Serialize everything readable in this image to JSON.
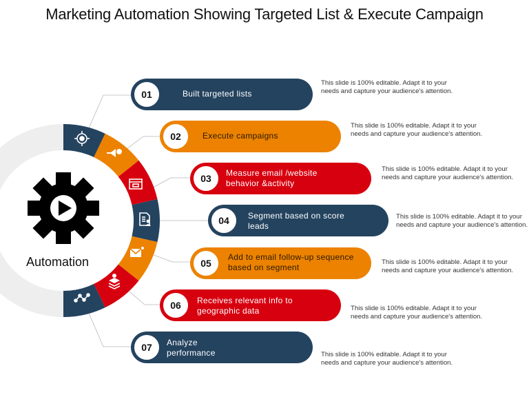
{
  "title": "Marketing Automation Showing Targeted List & Execute Campaign",
  "center": {
    "label": "Automation",
    "icon": "gear-play-icon"
  },
  "colors": {
    "navy": "#24435f",
    "orange": "#ec8200",
    "red": "#d7000f",
    "ring_bg": "#eeeeee",
    "connector": "#c8c8c8"
  },
  "steps": [
    {
      "num": "01",
      "label": "Built targeted lists",
      "color": "navy",
      "icon": "target-icon",
      "text_color": "#ffffff",
      "desc": "This slide is 100% editable. Adapt it to your needs and capture your audience's attention."
    },
    {
      "num": "02",
      "label": "Execute campaigns",
      "color": "orange",
      "icon": "megaphone-icon",
      "text_color": "#2a1a00",
      "desc": "This slide is 100% editable. Adapt it to your needs and capture your audience's attention."
    },
    {
      "num": "03",
      "label": "Measure email /website behavior &activity",
      "color": "red",
      "icon": "browser-window-icon",
      "text_color": "#ffffff",
      "desc": "This slide is 100% editable. Adapt it to your needs and capture your audience's attention."
    },
    {
      "num": "04",
      "label": "Segment based on score leads",
      "color": "navy",
      "icon": "document-user-icon",
      "text_color": "#ffffff",
      "desc": "This slide is 100% editable. Adapt it to your needs and capture your audience's attention."
    },
    {
      "num": "05",
      "label": "Add to email follow-up sequence based on segment",
      "color": "orange",
      "icon": "email-icon",
      "text_color": "#2a1a00",
      "desc": "This slide is 100% editable. Adapt it to your needs and capture your audience's attention."
    },
    {
      "num": "06",
      "label": "Receives relevant info to geographic data",
      "color": "red",
      "icon": "map-layers-pin-icon",
      "text_color": "#ffffff",
      "desc": "This slide is 100% editable. Adapt it to your needs and capture your audience's attention."
    },
    {
      "num": "07",
      "label": "Analyze performance",
      "color": "navy",
      "icon": "analytics-nodes-icon",
      "text_color": "#ffffff",
      "desc": "This slide is 100% editable. Adapt it to your needs and capture your audience's attention."
    }
  ]
}
